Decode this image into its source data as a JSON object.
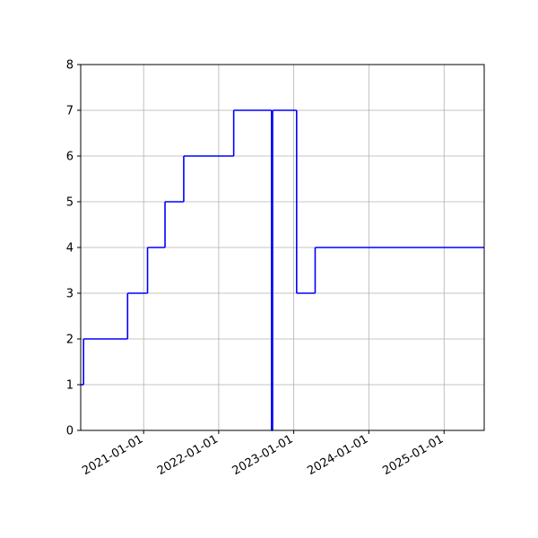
{
  "chart_data": {
    "type": "line",
    "drawstyle": "steps-post",
    "title": "",
    "xlabel": "",
    "ylabel": "",
    "xlim": [
      "2020-03-01",
      "2025-07-15"
    ],
    "ylim": [
      0,
      8
    ],
    "grid": true,
    "legend": "none",
    "x_ticks": [
      "2021-01-01",
      "2022-01-01",
      "2023-01-01",
      "2024-01-01",
      "2025-01-01"
    ],
    "y_ticks": [
      0,
      1,
      2,
      3,
      4,
      5,
      6,
      7,
      8
    ],
    "series": [
      {
        "color": "#0000ff",
        "points": [
          {
            "x": "2020-03-01",
            "y": 1
          },
          {
            "x": "2020-03-15",
            "y": 2
          },
          {
            "x": "2020-10-15",
            "y": 3
          },
          {
            "x": "2021-01-20",
            "y": 4
          },
          {
            "x": "2021-04-15",
            "y": 5
          },
          {
            "x": "2021-07-15",
            "y": 6
          },
          {
            "x": "2022-03-15",
            "y": 7
          },
          {
            "x": "2022-09-15",
            "y": 0
          },
          {
            "x": "2022-09-20",
            "y": 7
          },
          {
            "x": "2023-01-15",
            "y": 3
          },
          {
            "x": "2023-04-15",
            "y": 4
          },
          {
            "x": "2025-07-15",
            "y": 4
          }
        ]
      }
    ]
  }
}
